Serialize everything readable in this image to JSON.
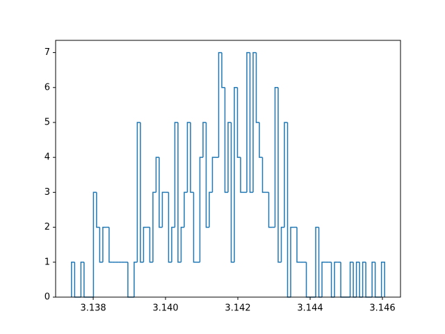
{
  "chart_data": {
    "type": "histogram",
    "histtype": "step",
    "color": "#1f77b4",
    "bins": [
      3.1374,
      3.1374866,
      3.1375732,
      3.1376598,
      3.1377464,
      3.137833,
      3.1379196,
      3.1380062,
      3.1380928,
      3.1381794,
      3.138266,
      3.1383526,
      3.1384392,
      3.1385258,
      3.1386124,
      3.138699,
      3.1387856,
      3.1388722,
      3.1389588,
      3.1390454,
      3.139132,
      3.1392186,
      3.1393052,
      3.1393918,
      3.1394784,
      3.139565,
      3.1396516,
      3.1397382,
      3.1398248,
      3.1399114,
      3.139998,
      3.1400846,
      3.1401712,
      3.1402578,
      3.1403444,
      3.140431,
      3.1405176,
      3.1406042,
      3.1406908,
      3.1407774,
      3.140864,
      3.1409506,
      3.1410372,
      3.1411238,
      3.1412104,
      3.141297,
      3.1413836,
      3.1414702,
      3.1415568,
      3.1416434,
      3.14173,
      3.1418166,
      3.1419032,
      3.1419898,
      3.1420764,
      3.142163,
      3.1422496,
      3.1423362,
      3.1424228,
      3.1425094,
      3.142596,
      3.1426826,
      3.1427692,
      3.1428558,
      3.1429424,
      3.143029,
      3.1431156,
      3.1432022,
      3.1432888,
      3.1433754,
      3.143462,
      3.1435486,
      3.1436352,
      3.1437218,
      3.1438084,
      3.143895,
      3.1439816,
      3.1440682,
      3.1441548,
      3.1442414,
      3.144328,
      3.1444146,
      3.1445012,
      3.1445878,
      3.1446744,
      3.144761,
      3.1448476,
      3.1449342,
      3.1450208,
      3.1451074,
      3.145194,
      3.1452806,
      3.1453672,
      3.1454538,
      3.1455404,
      3.145627,
      3.1457136,
      3.1458002,
      3.1458868,
      3.1459734,
      3.14606
    ],
    "values": [
      1,
      0,
      0,
      1,
      0,
      0,
      0,
      3,
      2,
      1,
      2,
      2,
      1,
      1,
      1,
      1,
      1,
      1,
      0,
      0,
      1,
      5,
      1,
      2,
      2,
      1,
      3,
      4,
      2,
      3,
      3,
      1,
      2,
      5,
      1,
      2,
      3,
      5,
      3,
      1,
      1,
      4,
      5,
      2,
      3,
      4,
      4,
      7,
      6,
      3,
      5,
      1,
      6,
      4,
      3,
      3,
      7,
      3,
      7,
      5,
      4,
      3,
      3,
      2,
      2,
      6,
      1,
      2,
      5,
      0,
      2,
      2,
      1,
      1,
      1,
      0,
      0,
      0,
      2,
      0,
      1,
      1,
      1,
      0,
      1,
      1,
      0,
      0,
      0,
      1,
      0,
      1,
      0,
      1,
      0,
      0,
      1,
      0,
      0,
      1
    ],
    "xlim": [
      3.13696,
      3.1465
    ],
    "xticks": [
      3.138,
      {
        "value": 3.14,
        "label": "3.140"
      },
      3.142,
      3.144,
      3.146
    ],
    "ylim": [
      0,
      7.35
    ],
    "yticks": [
      0,
      1,
      2,
      3,
      4,
      5,
      6,
      7
    ]
  }
}
